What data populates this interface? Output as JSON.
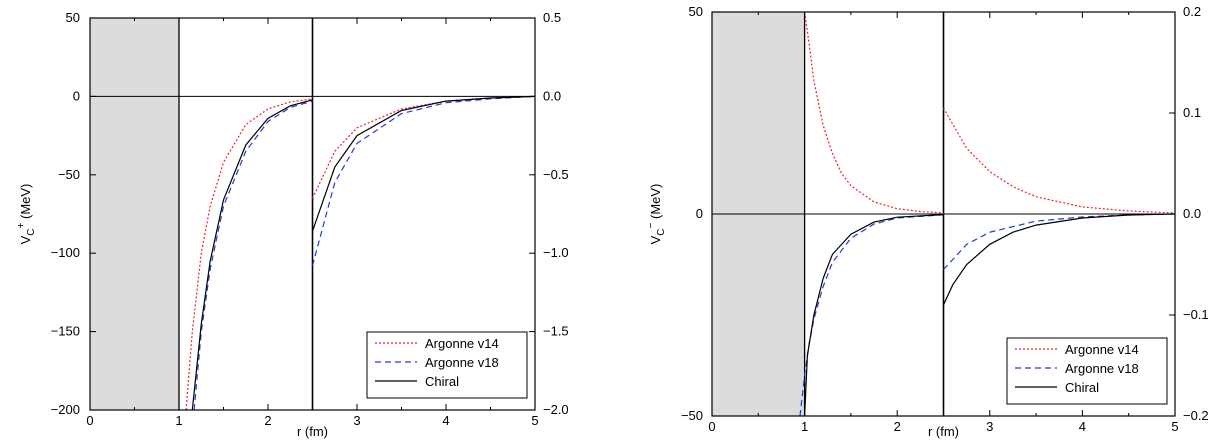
{
  "chart_data": [
    {
      "type": "line",
      "panel": "left",
      "xlabel": "r (fm)",
      "ylabel_main": "V",
      "ylabel_sub": "C",
      "ylabel_sup": "+",
      "ylabel_rest": " (MeV)",
      "xlim": [
        0,
        5
      ],
      "ylim_left": [
        -200,
        50
      ],
      "ylim_right": [
        -2.0,
        0.5
      ],
      "x_ticks": [
        "0",
        "1",
        "2",
        "3",
        "4",
        "5"
      ],
      "y_ticks_left": [
        "50",
        "0",
        "−50",
        "−100",
        "−150",
        "−200"
      ],
      "y_ticks_right": [
        "0.5",
        "0.0",
        "−0.5",
        "−1.0",
        "−1.5",
        "−2.0"
      ],
      "shaded_region_x": [
        0,
        1
      ],
      "split_x": 2.5,
      "series": [
        {
          "name": "Argonne v14",
          "color": "#e8262b",
          "dash": "2,2",
          "inner": [
            [
              1.08,
              -200
            ],
            [
              1.15,
              -150
            ],
            [
              1.25,
              -100
            ],
            [
              1.35,
              -70
            ],
            [
              1.5,
              -42
            ],
            [
              1.75,
              -18
            ],
            [
              2.0,
              -8
            ],
            [
              2.25,
              -3.5
            ],
            [
              2.5,
              -1.5
            ]
          ],
          "outer": [
            [
              2.5,
              -0.65
            ],
            [
              2.75,
              -0.35
            ],
            [
              3.0,
              -0.2
            ],
            [
              3.5,
              -0.08
            ],
            [
              4.0,
              -0.03
            ],
            [
              4.5,
              -0.01
            ],
            [
              5.0,
              0
            ]
          ]
        },
        {
          "name": "Argonne v18",
          "color": "#1f3bd6",
          "dash": "6,4",
          "inner": [
            [
              1.17,
              -200
            ],
            [
              1.25,
              -150
            ],
            [
              1.35,
              -110
            ],
            [
              1.5,
              -70
            ],
            [
              1.75,
              -35
            ],
            [
              2.0,
              -16
            ],
            [
              2.25,
              -7
            ],
            [
              2.5,
              -3
            ]
          ],
          "outer": [
            [
              2.5,
              -1.08
            ],
            [
              2.75,
              -0.55
            ],
            [
              3.0,
              -0.3
            ],
            [
              3.5,
              -0.11
            ],
            [
              4.0,
              -0.04
            ],
            [
              4.5,
              -0.015
            ],
            [
              5.0,
              0
            ]
          ]
        },
        {
          "name": "Chiral",
          "color": "#000000",
          "dash": "",
          "inner": [
            [
              1.15,
              -200
            ],
            [
              1.25,
              -145
            ],
            [
              1.35,
              -105
            ],
            [
              1.5,
              -66
            ],
            [
              1.75,
              -31
            ],
            [
              2.0,
              -14
            ],
            [
              2.25,
              -6
            ],
            [
              2.5,
              -2.2
            ]
          ],
          "outer": [
            [
              2.5,
              -0.86
            ],
            [
              2.75,
              -0.45
            ],
            [
              3.0,
              -0.25
            ],
            [
              3.5,
              -0.09
            ],
            [
              4.0,
              -0.03
            ],
            [
              4.5,
              -0.01
            ],
            [
              5.0,
              0
            ]
          ]
        }
      ],
      "legend_position": "bottom-right"
    },
    {
      "type": "line",
      "panel": "right",
      "xlabel": "r (fm)",
      "ylabel_main": "V",
      "ylabel_sub": "C",
      "ylabel_sup": "−",
      "ylabel_rest": " (MeV)",
      "xlim": [
        0,
        5
      ],
      "ylim_left": [
        -50,
        50
      ],
      "ylim_right": [
        -0.2,
        0.2
      ],
      "x_ticks": [
        "0",
        "1",
        "2",
        "3",
        "4",
        "5"
      ],
      "y_ticks_left": [
        "50",
        "0",
        "−50"
      ],
      "y_ticks_right": [
        "0.2",
        "0.1",
        "0.0",
        "−0.1",
        "−0.2"
      ],
      "shaded_region_x": [
        0,
        1
      ],
      "split_x": 2.5,
      "series": [
        {
          "name": "Argonne v14",
          "color": "#e8262b",
          "dash": "2,2",
          "inner": [
            [
              1.0,
              50
            ],
            [
              1.05,
              42
            ],
            [
              1.1,
              33
            ],
            [
              1.2,
              22
            ],
            [
              1.3,
              15
            ],
            [
              1.4,
              10
            ],
            [
              1.5,
              7
            ],
            [
              1.75,
              3
            ],
            [
              2.0,
              1.3
            ],
            [
              2.25,
              0.6
            ],
            [
              2.5,
              0.3
            ]
          ],
          "outer": [
            [
              2.5,
              0.105
            ],
            [
              2.75,
              0.065
            ],
            [
              3.0,
              0.042
            ],
            [
              3.25,
              0.027
            ],
            [
              3.5,
              0.017
            ],
            [
              4.0,
              0.007
            ],
            [
              4.5,
              0.003
            ],
            [
              5.0,
              0.001
            ]
          ]
        },
        {
          "name": "Argonne v18",
          "color": "#1f3bd6",
          "dash": "6,4",
          "inner": [
            [
              0.95,
              -50
            ],
            [
              1.0,
              -40
            ],
            [
              1.05,
              -32
            ],
            [
              1.1,
              -26
            ],
            [
              1.2,
              -18
            ],
            [
              1.3,
              -12
            ],
            [
              1.5,
              -6
            ],
            [
              1.75,
              -2.5
            ],
            [
              2.0,
              -1
            ],
            [
              2.5,
              -0.2
            ]
          ],
          "outer": [
            [
              2.5,
              -0.055
            ],
            [
              2.75,
              -0.03
            ],
            [
              3.0,
              -0.018
            ],
            [
              3.5,
              -0.007
            ],
            [
              4.0,
              -0.003
            ],
            [
              4.5,
              -0.001
            ],
            [
              5.0,
              0
            ]
          ]
        },
        {
          "name": "Chiral",
          "color": "#000000",
          "dash": "",
          "inner": [
            [
              1.0,
              -50
            ],
            [
              1.03,
              -35
            ],
            [
              1.1,
              -25
            ],
            [
              1.2,
              -16
            ],
            [
              1.3,
              -10
            ],
            [
              1.5,
              -5
            ],
            [
              1.75,
              -2
            ],
            [
              2.0,
              -0.8
            ],
            [
              2.5,
              -0.15
            ]
          ],
          "outer": [
            [
              2.5,
              -0.09
            ],
            [
              2.6,
              -0.07
            ],
            [
              2.75,
              -0.05
            ],
            [
              3.0,
              -0.03
            ],
            [
              3.25,
              -0.018
            ],
            [
              3.5,
              -0.011
            ],
            [
              4.0,
              -0.004
            ],
            [
              4.5,
              -0.001
            ],
            [
              5.0,
              0
            ]
          ]
        }
      ],
      "legend_position": "bottom-right"
    }
  ],
  "colors": {
    "shade": "#dcdcdc",
    "axis": "#000000"
  }
}
